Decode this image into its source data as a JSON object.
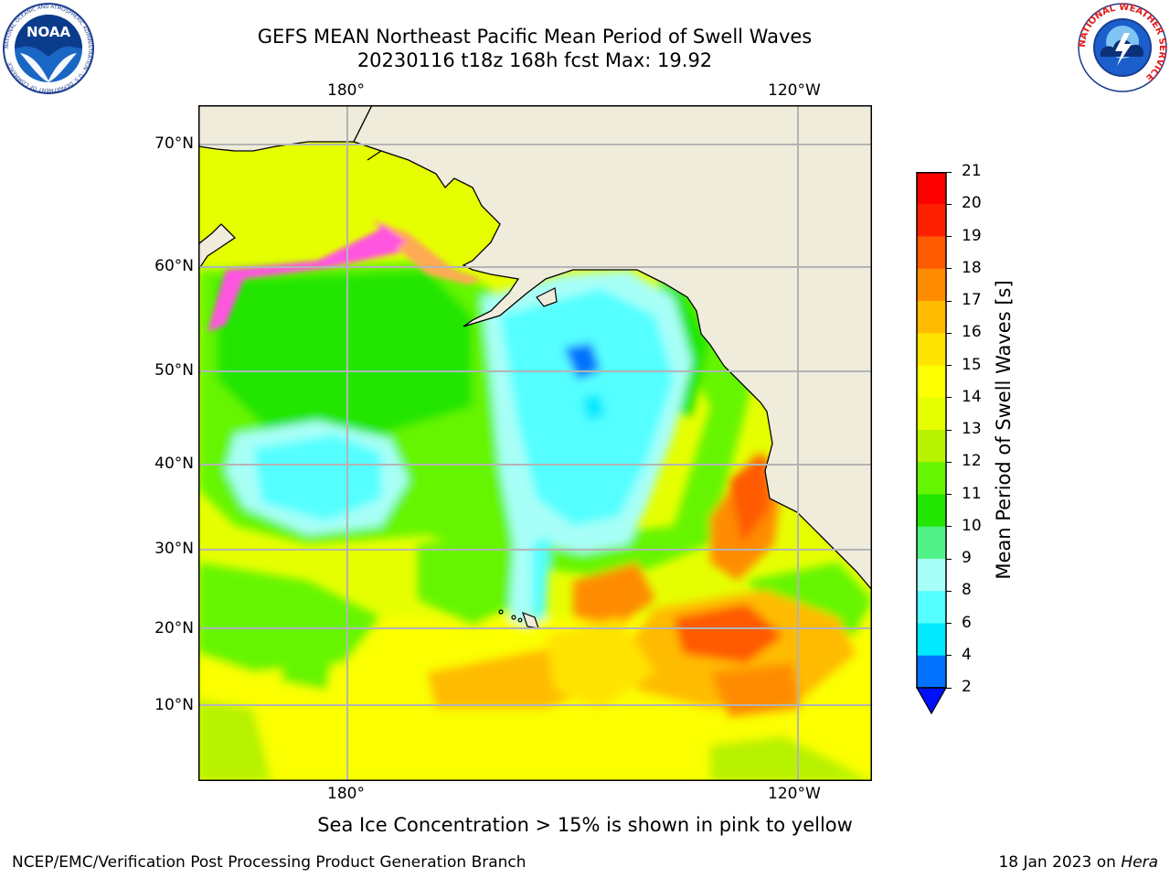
{
  "title_line1": "GEFS MEAN Northeast Pacific Mean Period of Swell Waves",
  "title_line2": "20230116 t18z 168h fcst   Max: 19.92",
  "map": {
    "top_lon_labels": [
      "180°",
      "120°W"
    ],
    "bottom_lon_labels": [
      "180°",
      "120°W"
    ],
    "lat_labels": [
      "70°N",
      "60°N",
      "50°N",
      "40°N",
      "30°N",
      "20°N",
      "10°N"
    ]
  },
  "colorbar": {
    "title": "Mean Period of Swell Waves [s]",
    "ticks": [
      "21",
      "20",
      "19",
      "18",
      "17",
      "16",
      "15",
      "14",
      "13",
      "12",
      "11",
      "10",
      "9",
      "8",
      "6",
      "4",
      "2"
    ],
    "colors": {
      "20": "#ff0000",
      "19": "#ff2000",
      "18": "#ff5a00",
      "17": "#ff8c00",
      "16": "#ffbb00",
      "15": "#ffe300",
      "14": "#fbff00",
      "13": "#e6ff00",
      "12": "#b7f200",
      "11": "#66f500",
      "10": "#22e600",
      "9": "#50f287",
      "8": "#a8fff7",
      "6": "#55ffff",
      "4": "#00e9ff",
      "2": "#0072ff",
      "under": "#0010ff"
    }
  },
  "colors": {
    "land": "#efecdc",
    "coast": "#000000",
    "grid": "#b4b4b4",
    "ice_pink": "#ff55e0",
    "ice_orange": "#ffaa55"
  },
  "logos": {
    "noaa_text": "NOAA",
    "noaa_ring": "NATIONAL OCEANIC AND ATMOSPHERIC ADMINISTRATION · U.S. DEPARTMENT OF COMMERCE",
    "nws_ring": "NATIONAL WEATHER SERVICE"
  },
  "ice_note": "Sea Ice Concentration > 15% is shown in pink to yellow",
  "footer_left": "NCEP/EMC/Verification Post Processing Product Generation Branch",
  "footer_right_prefix": "18 Jan 2023 on ",
  "footer_right_machine": "Hera"
}
